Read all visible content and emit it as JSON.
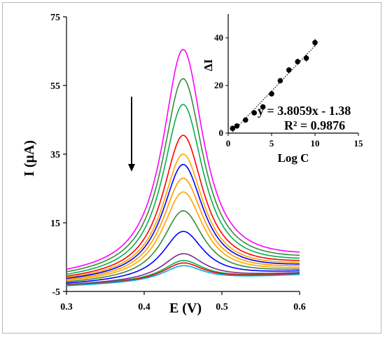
{
  "chart_data": [
    {
      "type": "line",
      "title": "",
      "xlabel": "E (V)",
      "ylabel": "I (μA)",
      "xlim": [
        0.3,
        0.6
      ],
      "ylim": [
        -5,
        75
      ],
      "xticks": [
        "0.3",
        "0.4",
        "0.5",
        "0.6"
      ],
      "yticks": [
        "-5",
        "15",
        "35",
        "55",
        "75"
      ],
      "peak_potential": 0.45,
      "arrow_direction": "down",
      "series": [
        {
          "color": "#ff00ff",
          "baseline_start": -0.5,
          "baseline_end": 4.5,
          "peak": 65.5
        },
        {
          "color": "#3a8a3a",
          "baseline_start": -1.0,
          "baseline_end": 3.8,
          "peak": 57.0
        },
        {
          "color": "#00b050",
          "baseline_start": -1.5,
          "baseline_end": 3.2,
          "peak": 49.5
        },
        {
          "color": "#ff0000",
          "baseline_start": -1.8,
          "baseline_end": 2.8,
          "peak": 40.5
        },
        {
          "color": "#ffa500",
          "baseline_start": -2.0,
          "baseline_end": 2.4,
          "peak": 35.0
        },
        {
          "color": "#0000ff",
          "baseline_start": -2.2,
          "baseline_end": 2.0,
          "peak": 32.0
        },
        {
          "color": "#ff9900",
          "baseline_start": -2.4,
          "baseline_end": 1.6,
          "peak": 28.0
        },
        {
          "color": "#ffa500",
          "baseline_start": -2.6,
          "baseline_end": 1.2,
          "peak": 24.0
        },
        {
          "color": "#3a8a3a",
          "baseline_start": -2.8,
          "baseline_end": 0.9,
          "peak": 18.5
        },
        {
          "color": "#0000ff",
          "baseline_start": -3.0,
          "baseline_end": 0.6,
          "peak": 12.5
        },
        {
          "color": "#7a2a8a",
          "baseline_start": -3.2,
          "baseline_end": 0.3,
          "peak": 6.0
        },
        {
          "color": "#00b050",
          "baseline_start": -3.3,
          "baseline_end": 0.1,
          "peak": 4.0
        },
        {
          "color": "#ff0000",
          "baseline_start": -3.4,
          "baseline_end": 0.0,
          "peak": 3.3
        },
        {
          "color": "#00b0f0",
          "baseline_start": -3.5,
          "baseline_end": -0.2,
          "peak": 2.5
        }
      ]
    },
    {
      "type": "scatter",
      "xlabel": "Log C",
      "ylabel": "ΔI",
      "xlim": [
        0,
        15
      ],
      "ylim": [
        0,
        50
      ],
      "xticks": [
        "0",
        "5",
        "10",
        "15"
      ],
      "yticks": [
        "0",
        "20",
        "40"
      ],
      "points": [
        {
          "x": 0.5,
          "y": 2.0,
          "err": 0.4
        },
        {
          "x": 1.0,
          "y": 3.0,
          "err": 0.4
        },
        {
          "x": 2.0,
          "y": 5.5,
          "err": 0.5
        },
        {
          "x": 3.0,
          "y": 8.5,
          "err": 0.6
        },
        {
          "x": 4.0,
          "y": 11.0,
          "err": 0.7
        },
        {
          "x": 5.0,
          "y": 16.5,
          "err": 0.8
        },
        {
          "x": 6.0,
          "y": 22.0,
          "err": 1.0
        },
        {
          "x": 7.0,
          "y": 26.5,
          "err": 1.2
        },
        {
          "x": 8.0,
          "y": 30.0,
          "err": 1.3
        },
        {
          "x": 9.0,
          "y": 31.5,
          "err": 1.5
        },
        {
          "x": 10.0,
          "y": 38.0,
          "err": 1.6
        }
      ],
      "trendline": {
        "slope": 3.8059,
        "intercept": -1.38,
        "style": "dotted"
      },
      "equation": "y = 3.8059x - 1.38",
      "r_squared": "R² = 0.9876"
    }
  ]
}
